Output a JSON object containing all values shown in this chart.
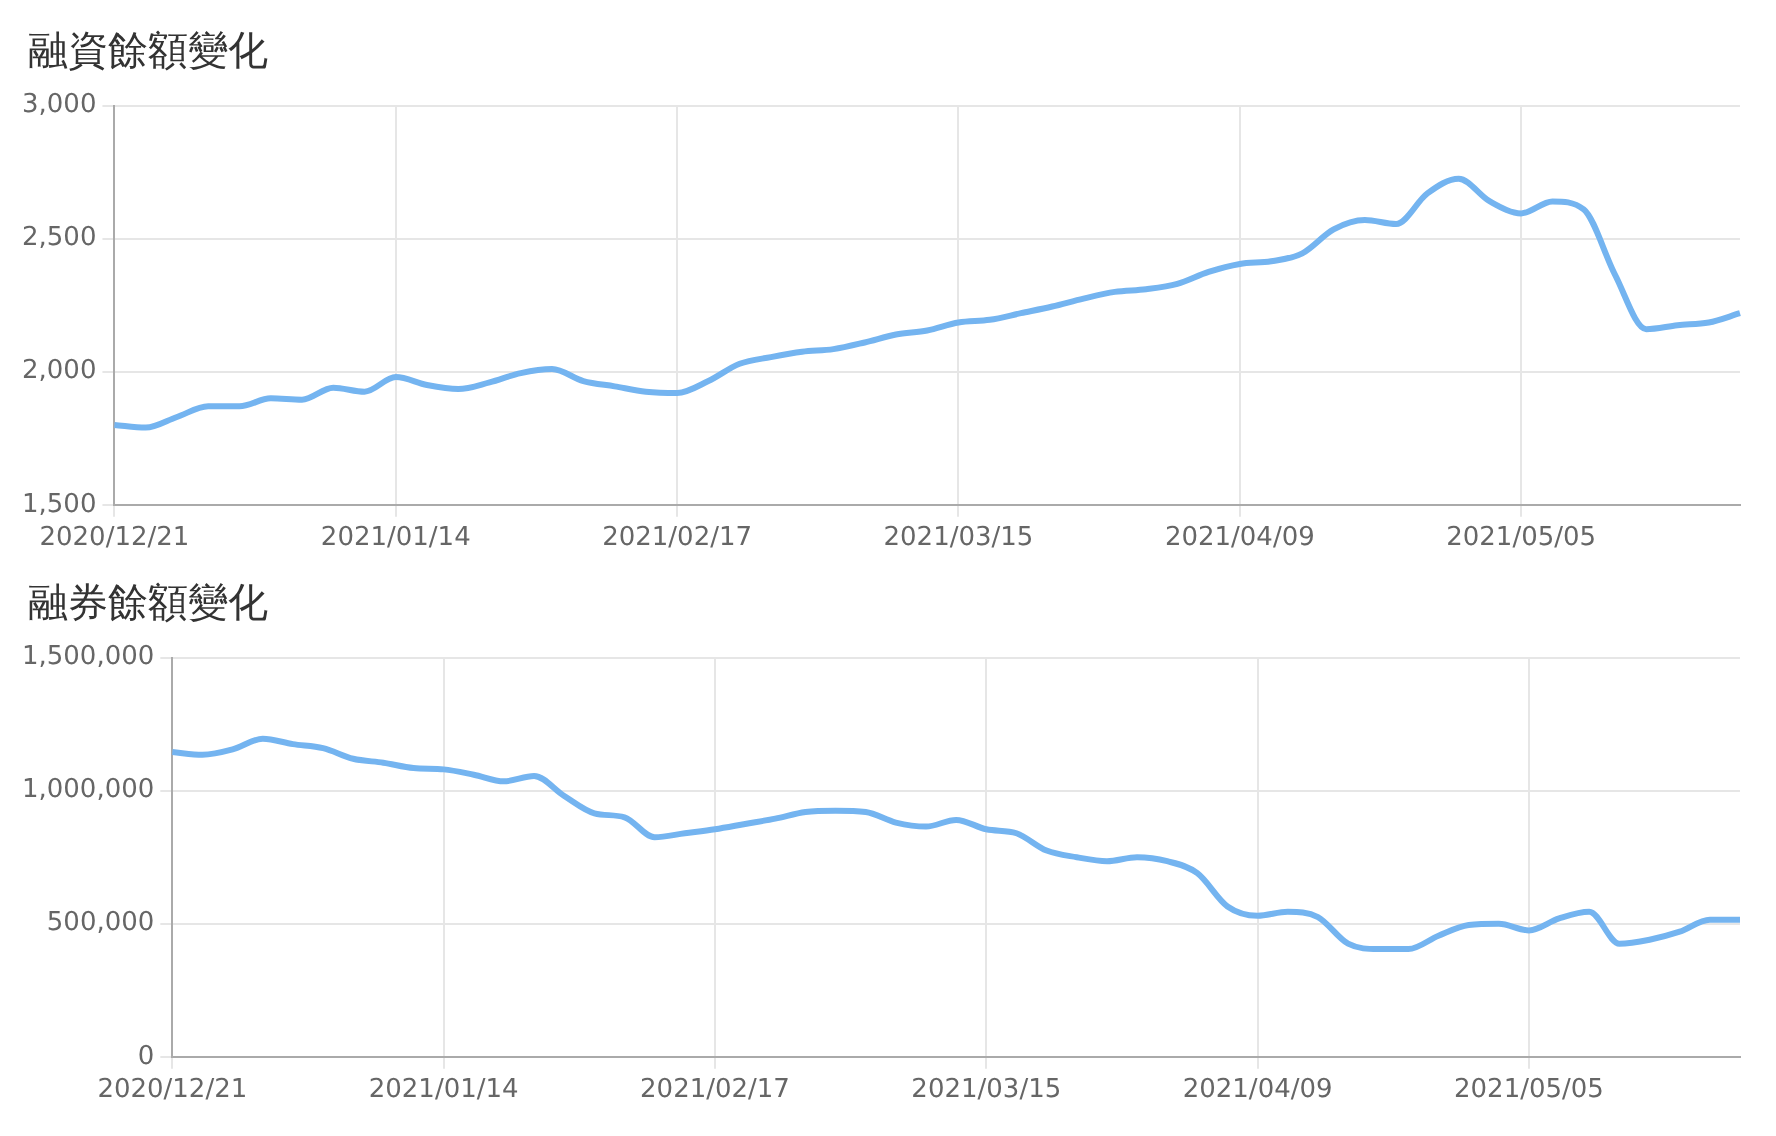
{
  "chart_data": [
    {
      "type": "line",
      "title": "融資餘額變化",
      "color": "#74b4f0",
      "grid": true,
      "categories": [
        "2020/12/21",
        null,
        null,
        null,
        null,
        null,
        null,
        null,
        null,
        "2021/01/14",
        null,
        null,
        null,
        null,
        null,
        null,
        null,
        null,
        "2021/02/17",
        null,
        null,
        null,
        null,
        null,
        null,
        null,
        null,
        "2021/03/15",
        null,
        null,
        null,
        null,
        null,
        null,
        null,
        null,
        "2021/04/09",
        null,
        null,
        null,
        null,
        null,
        null,
        null,
        null,
        "2021/05/05",
        null,
        null,
        null,
        null,
        null,
        null,
        null
      ],
      "values": [
        1800,
        1790,
        1830,
        1870,
        1870,
        1900,
        1895,
        1940,
        1925,
        1980,
        1950,
        1935,
        1960,
        1995,
        2010,
        1965,
        1945,
        1925,
        1920,
        1965,
        2030,
        2055,
        2075,
        2085,
        2110,
        2140,
        2155,
        2185,
        2195,
        2220,
        2245,
        2275,
        2300,
        2310,
        2330,
        2375,
        2405,
        2415,
        2445,
        2535,
        2570,
        2555,
        2670,
        2725,
        2640,
        2595,
        2640,
        2610,
        2365,
        2160,
        2175,
        2185,
        2220
      ],
      "ylim": [
        1500,
        3000
      ],
      "yticks": [
        {
          "value": 1500,
          "label": "1,500"
        },
        {
          "value": 2000,
          "label": "2,000"
        },
        {
          "value": 2500,
          "label": "2,500"
        },
        {
          "value": 3000,
          "label": "3,000"
        }
      ]
    },
    {
      "type": "line",
      "title": "融券餘額變化",
      "color": "#74b4f0",
      "grid": true,
      "categories": [
        "2020/12/21",
        null,
        null,
        null,
        null,
        null,
        null,
        null,
        null,
        "2021/01/14",
        null,
        null,
        null,
        null,
        null,
        null,
        null,
        null,
        "2021/02/17",
        null,
        null,
        null,
        null,
        null,
        null,
        null,
        null,
        "2021/03/15",
        null,
        null,
        null,
        null,
        null,
        null,
        null,
        null,
        "2021/04/09",
        null,
        null,
        null,
        null,
        null,
        null,
        null,
        null,
        "2021/05/05",
        null,
        null,
        null,
        null,
        null,
        null,
        null
      ],
      "values": [
        1145000,
        1135000,
        1155000,
        1195000,
        1175000,
        1160000,
        1120000,
        1105000,
        1085000,
        1080000,
        1060000,
        1035000,
        1055000,
        980000,
        915000,
        900000,
        825000,
        840000,
        855000,
        875000,
        895000,
        920000,
        925000,
        920000,
        880000,
        865000,
        890000,
        855000,
        840000,
        775000,
        750000,
        735000,
        750000,
        735000,
        690000,
        565000,
        530000,
        545000,
        525000,
        425000,
        405000,
        405000,
        455000,
        495000,
        500000,
        475000,
        520000,
        545000,
        425000,
        440000,
        470000,
        515000,
        515000
      ],
      "ylim": [
        0,
        1500000
      ],
      "yticks": [
        {
          "value": 0,
          "label": "0"
        },
        {
          "value": 500000,
          "label": "500,000"
        },
        {
          "value": 1000000,
          "label": "1,000,000"
        },
        {
          "value": 1500000,
          "label": "1,500,000"
        }
      ]
    }
  ]
}
